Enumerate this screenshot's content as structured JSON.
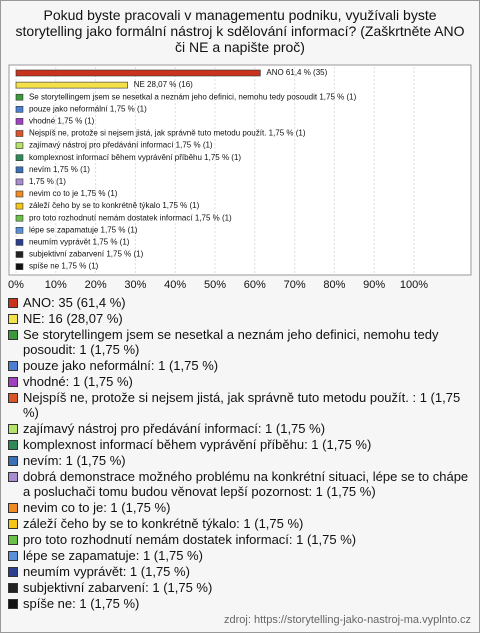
{
  "chart_data": {
    "type": "hbar",
    "title": "Pokud byste pracovali v managementu podniku, využívali byste storytelling jako formální nástroj k sdělování informací? (Zaškrtněte ANO či NE a napište proč)",
    "categories": [
      "ANO: 35 (61,4 %)",
      "NE: 16 (28,07 %)",
      "Se storytellingem jsem se nesetkal a neznám jeho definici, nemohu tedy posoudit: 1 (1,75 %)",
      "pouze jako neformální: 1 (1,75 %)",
      "vhodné: 1 (1,75 %)",
      "Nejspíš ne, protože si nejsem jistá, jak správně tuto metodu použít. : 1 (1,75 %)",
      "zajímavý nástroj pro předávání informací: 1 (1,75 %)",
      "komplexnost informací během vyprávění příběhu: 1 (1,75 %)",
      "nevím: 1 (1,75 %)",
      "dobrá demonstrace možného problému na konkrétní situaci, lépe se to chápe a posluchači tomu budou věnovat lepší pozornost: 1 (1,75 %)",
      "nevim co to je: 1 (1,75 %)",
      "záleží čeho by se to konkrétně týkalo: 1 (1,75 %)",
      "pro toto rozhodnutí nemám dostatek informací: 1 (1,75 %)",
      "lépe se zapamatuje: 1 (1,75 %)",
      "neumím vyprávět: 1 (1,75 %)",
      "subjektivní zabarvení: 1 (1,75 %)",
      "spíše ne: 1 (1,75 %)"
    ],
    "values": [
      61.4,
      28.07,
      1.75,
      1.75,
      1.75,
      1.75,
      1.75,
      1.75,
      1.75,
      1.75,
      1.75,
      1.75,
      1.75,
      1.75,
      1.75,
      1.75,
      1.75
    ],
    "value_labels": [
      "ANO 61,4 % (35)",
      "NE 28,07 % (16)",
      "Se storytellingem jsem se nesetkal a neznám jeho definici, nemohu tedy posoudit 1,75 % (1)",
      "pouze jako neformální 1,75 % (1)",
      "vhodné 1,75 % (1)",
      "Nejspíš ne, protože si nejsem jistá, jak správně tuto metodu použít.  1,75 % (1)",
      "zajímavý nástroj pro předávání informací 1,75 % (1)",
      "komplexnost informací během vyprávění příběhu 1,75 % (1)",
      "nevím 1,75 % (1)",
      "1,75 % (1)",
      "nevim co to je 1,75 % (1)",
      "záleží čeho by se to konkrétně týkalo 1,75 % (1)",
      "pro toto rozhodnutí nemám dostatek informací 1,75 % (1)",
      "lépe se zapamatuje 1,75 % (1)",
      "neumím vyprávět 1,75 % (1)",
      "subjektivní zabarvení 1,75 % (1)",
      "spíše ne 1,75 % (1)"
    ],
    "colors": [
      "#c8331d",
      "#f3e04a",
      "#3a9a3a",
      "#4a7fd4",
      "#a040c0",
      "#d9542a",
      "#b5e36a",
      "#2e8b57",
      "#3b6fb6",
      "#a98bd0",
      "#f08a24",
      "#f5c518",
      "#6cc04a",
      "#5b8fd9",
      "#2a3f8f",
      "#222222",
      "#111111"
    ],
    "xlim": [
      0,
      100
    ],
    "xticks": [
      {
        "value": 0,
        "label": "0%"
      },
      {
        "value": 10,
        "label": "10%"
      },
      {
        "value": 20,
        "label": "20%"
      },
      {
        "value": 30,
        "label": "30%"
      },
      {
        "value": 40,
        "label": "40%"
      },
      {
        "value": 50,
        "label": "50%"
      },
      {
        "value": 60,
        "label": "60%"
      },
      {
        "value": 70,
        "label": "70%"
      },
      {
        "value": 80,
        "label": "80%"
      },
      {
        "value": 90,
        "label": "90%"
      },
      {
        "value": 100,
        "label": "100%"
      }
    ],
    "grid": true,
    "source": "zdroj: https://storytelling-jako-nastroj-ma.vyplnto.cz"
  }
}
